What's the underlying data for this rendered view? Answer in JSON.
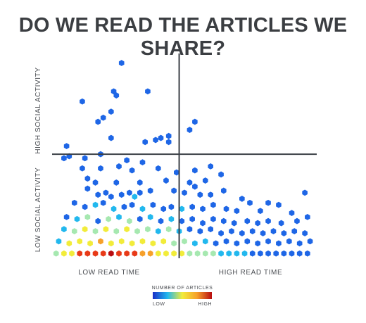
{
  "chart_data": {
    "type": "heatmap",
    "title": "DO WE READ THE ARTICLES WE SHARE?",
    "x_axis_labels": {
      "low": "LOW READ TIME",
      "high": "HIGH READ TIME"
    },
    "y_axis_labels": {
      "low": "LOW SOCIAL ACTIVITY",
      "high": "HIGH SOCIAL ACTIVITY"
    },
    "x_range": [
      0,
      1
    ],
    "y_range": [
      0,
      1
    ],
    "divider": {
      "x": 0.48,
      "y": 0.51
    },
    "legend": {
      "title": "NUMBER OF ARTICLES",
      "low": "LOW",
      "high": "HIGH"
    },
    "colors": [
      "#1a2fc8",
      "#1e66e6",
      "#22b8ee",
      "#a6e8b0",
      "#f2ec3a",
      "#f6a02a",
      "#e83a18",
      "#b80c10"
    ],
    "bins": [
      [
        0.26,
        0.96,
        0.1
      ],
      [
        0.11,
        0.77,
        0.1
      ],
      [
        0.23,
        0.82,
        0.1
      ],
      [
        0.24,
        0.8,
        0.1
      ],
      [
        0.36,
        0.82,
        0.1
      ],
      [
        0.19,
        0.69,
        0.1
      ],
      [
        0.22,
        0.72,
        0.1
      ],
      [
        0.17,
        0.67,
        0.1
      ],
      [
        0.05,
        0.55,
        0.1
      ],
      [
        0.22,
        0.59,
        0.1
      ],
      [
        0.35,
        0.57,
        0.1
      ],
      [
        0.39,
        0.58,
        0.1
      ],
      [
        0.41,
        0.59,
        0.1
      ],
      [
        0.44,
        0.6,
        0.1
      ],
      [
        0.44,
        0.57,
        0.1
      ],
      [
        0.52,
        0.63,
        0.1
      ],
      [
        0.54,
        0.67,
        0.1
      ],
      [
        0.18,
        0.51,
        0.1
      ],
      [
        0.28,
        0.48,
        0.1
      ],
      [
        0.04,
        0.49,
        0.1
      ],
      [
        0.06,
        0.5,
        0.1
      ],
      [
        0.12,
        0.49,
        0.1
      ],
      [
        0.11,
        0.44,
        0.15
      ],
      [
        0.18,
        0.44,
        0.1
      ],
      [
        0.25,
        0.45,
        0.1
      ],
      [
        0.3,
        0.43,
        0.1
      ],
      [
        0.34,
        0.47,
        0.1
      ],
      [
        0.4,
        0.44,
        0.1
      ],
      [
        0.47,
        0.42,
        0.1
      ],
      [
        0.54,
        0.43,
        0.1
      ],
      [
        0.6,
        0.45,
        0.1
      ],
      [
        0.64,
        0.41,
        0.1
      ],
      [
        0.13,
        0.39,
        0.1
      ],
      [
        0.16,
        0.37,
        0.1
      ],
      [
        0.24,
        0.37,
        0.2
      ],
      [
        0.33,
        0.37,
        0.1
      ],
      [
        0.43,
        0.38,
        0.1
      ],
      [
        0.52,
        0.37,
        0.1
      ],
      [
        0.58,
        0.38,
        0.1
      ],
      [
        0.13,
        0.34,
        0.2
      ],
      [
        0.17,
        0.31,
        0.1
      ],
      [
        0.2,
        0.32,
        0.2
      ],
      [
        0.22,
        0.3,
        0.1
      ],
      [
        0.26,
        0.31,
        0.2
      ],
      [
        0.29,
        0.32,
        0.1
      ],
      [
        0.31,
        0.3,
        0.3
      ],
      [
        0.33,
        0.32,
        0.1
      ],
      [
        0.37,
        0.33,
        0.2
      ],
      [
        0.46,
        0.33,
        0.1
      ],
      [
        0.5,
        0.32,
        0.1
      ],
      [
        0.54,
        0.35,
        0.1
      ],
      [
        0.56,
        0.31,
        0.1
      ],
      [
        0.6,
        0.31,
        0.1
      ],
      [
        0.65,
        0.33,
        0.1
      ],
      [
        0.72,
        0.29,
        0.1
      ],
      [
        0.75,
        0.27,
        0.1
      ],
      [
        0.82,
        0.27,
        0.1
      ],
      [
        0.86,
        0.26,
        0.1
      ],
      [
        0.96,
        0.32,
        0.1
      ],
      [
        0.08,
        0.27,
        0.2
      ],
      [
        0.12,
        0.25,
        0.2
      ],
      [
        0.16,
        0.26,
        0.3
      ],
      [
        0.19,
        0.27,
        0.1
      ],
      [
        0.23,
        0.24,
        0.3
      ],
      [
        0.27,
        0.25,
        0.2
      ],
      [
        0.3,
        0.26,
        0.1
      ],
      [
        0.34,
        0.24,
        0.3
      ],
      [
        0.38,
        0.26,
        0.2
      ],
      [
        0.42,
        0.24,
        0.1
      ],
      [
        0.45,
        0.25,
        0.2
      ],
      [
        0.49,
        0.24,
        0.3
      ],
      [
        0.53,
        0.25,
        0.2
      ],
      [
        0.57,
        0.24,
        0.1
      ],
      [
        0.61,
        0.26,
        0.2
      ],
      [
        0.66,
        0.24,
        0.1
      ],
      [
        0.7,
        0.23,
        0.1
      ],
      [
        0.79,
        0.23,
        0.1
      ],
      [
        0.91,
        0.22,
        0.1
      ],
      [
        0.05,
        0.2,
        0.2
      ],
      [
        0.09,
        0.19,
        0.3
      ],
      [
        0.13,
        0.2,
        0.4
      ],
      [
        0.17,
        0.18,
        0.2
      ],
      [
        0.21,
        0.19,
        0.4
      ],
      [
        0.25,
        0.2,
        0.3
      ],
      [
        0.29,
        0.18,
        0.4
      ],
      [
        0.33,
        0.19,
        0.2
      ],
      [
        0.37,
        0.2,
        0.3
      ],
      [
        0.41,
        0.18,
        0.2
      ],
      [
        0.45,
        0.19,
        0.3
      ],
      [
        0.49,
        0.18,
        0.2
      ],
      [
        0.53,
        0.19,
        0.1
      ],
      [
        0.57,
        0.17,
        0.2
      ],
      [
        0.61,
        0.19,
        0.1
      ],
      [
        0.65,
        0.18,
        0.2
      ],
      [
        0.69,
        0.17,
        0.1
      ],
      [
        0.74,
        0.18,
        0.1
      ],
      [
        0.78,
        0.17,
        0.2
      ],
      [
        0.82,
        0.18,
        0.1
      ],
      [
        0.87,
        0.17,
        0.1
      ],
      [
        0.93,
        0.18,
        0.1
      ],
      [
        0.97,
        0.2,
        0.1
      ],
      [
        0.04,
        0.14,
        0.3
      ],
      [
        0.08,
        0.13,
        0.4
      ],
      [
        0.12,
        0.14,
        0.5
      ],
      [
        0.16,
        0.13,
        0.4
      ],
      [
        0.2,
        0.14,
        0.5
      ],
      [
        0.24,
        0.13,
        0.4
      ],
      [
        0.28,
        0.14,
        0.5
      ],
      [
        0.32,
        0.13,
        0.4
      ],
      [
        0.36,
        0.14,
        0.4
      ],
      [
        0.4,
        0.13,
        0.3
      ],
      [
        0.44,
        0.14,
        0.4
      ],
      [
        0.48,
        0.13,
        0.3
      ],
      [
        0.52,
        0.14,
        0.2
      ],
      [
        0.56,
        0.13,
        0.2
      ],
      [
        0.6,
        0.14,
        0.1
      ],
      [
        0.64,
        0.12,
        0.2
      ],
      [
        0.68,
        0.13,
        0.1
      ],
      [
        0.72,
        0.12,
        0.1
      ],
      [
        0.76,
        0.13,
        0.2
      ],
      [
        0.8,
        0.12,
        0.1
      ],
      [
        0.84,
        0.13,
        0.1
      ],
      [
        0.88,
        0.12,
        0.2
      ],
      [
        0.92,
        0.13,
        0.1
      ],
      [
        0.96,
        0.12,
        0.1
      ],
      [
        0.02,
        0.08,
        0.3
      ],
      [
        0.06,
        0.07,
        0.5
      ],
      [
        0.1,
        0.08,
        0.6
      ],
      [
        0.14,
        0.07,
        0.6
      ],
      [
        0.18,
        0.08,
        0.7
      ],
      [
        0.22,
        0.07,
        0.6
      ],
      [
        0.26,
        0.08,
        0.6
      ],
      [
        0.3,
        0.07,
        0.6
      ],
      [
        0.34,
        0.08,
        0.5
      ],
      [
        0.38,
        0.07,
        0.5
      ],
      [
        0.42,
        0.08,
        0.5
      ],
      [
        0.46,
        0.07,
        0.4
      ],
      [
        0.5,
        0.08,
        0.4
      ],
      [
        0.54,
        0.07,
        0.3
      ],
      [
        0.58,
        0.08,
        0.3
      ],
      [
        0.62,
        0.07,
        0.2
      ],
      [
        0.66,
        0.08,
        0.2
      ],
      [
        0.7,
        0.07,
        0.2
      ],
      [
        0.74,
        0.08,
        0.1
      ],
      [
        0.78,
        0.07,
        0.2
      ],
      [
        0.82,
        0.08,
        0.1
      ],
      [
        0.86,
        0.07,
        0.1
      ],
      [
        0.9,
        0.08,
        0.1
      ],
      [
        0.94,
        0.07,
        0.1
      ],
      [
        0.98,
        0.08,
        0.1
      ],
      [
        0.01,
        0.02,
        0.4
      ],
      [
        0.04,
        0.02,
        0.5
      ],
      [
        0.07,
        0.02,
        0.6
      ],
      [
        0.1,
        0.02,
        0.8
      ],
      [
        0.13,
        0.02,
        0.85
      ],
      [
        0.16,
        0.02,
        0.9
      ],
      [
        0.19,
        0.02,
        0.9
      ],
      [
        0.22,
        0.02,
        0.95
      ],
      [
        0.25,
        0.02,
        0.9
      ],
      [
        0.28,
        0.02,
        0.85
      ],
      [
        0.31,
        0.02,
        0.8
      ],
      [
        0.34,
        0.02,
        0.7
      ],
      [
        0.37,
        0.02,
        0.7
      ],
      [
        0.4,
        0.02,
        0.6
      ],
      [
        0.43,
        0.02,
        0.6
      ],
      [
        0.46,
        0.02,
        0.55
      ],
      [
        0.49,
        0.02,
        0.5
      ],
      [
        0.52,
        0.02,
        0.45
      ],
      [
        0.55,
        0.02,
        0.45
      ],
      [
        0.58,
        0.02,
        0.4
      ],
      [
        0.61,
        0.02,
        0.4
      ],
      [
        0.64,
        0.02,
        0.35
      ],
      [
        0.67,
        0.02,
        0.35
      ],
      [
        0.7,
        0.02,
        0.3
      ],
      [
        0.73,
        0.02,
        0.3
      ],
      [
        0.76,
        0.02,
        0.2
      ],
      [
        0.79,
        0.02,
        0.2
      ],
      [
        0.82,
        0.02,
        0.2
      ],
      [
        0.85,
        0.02,
        0.15
      ],
      [
        0.88,
        0.02,
        0.15
      ],
      [
        0.91,
        0.02,
        0.15
      ],
      [
        0.94,
        0.02,
        0.15
      ],
      [
        0.97,
        0.02,
        0.15
      ]
    ]
  }
}
